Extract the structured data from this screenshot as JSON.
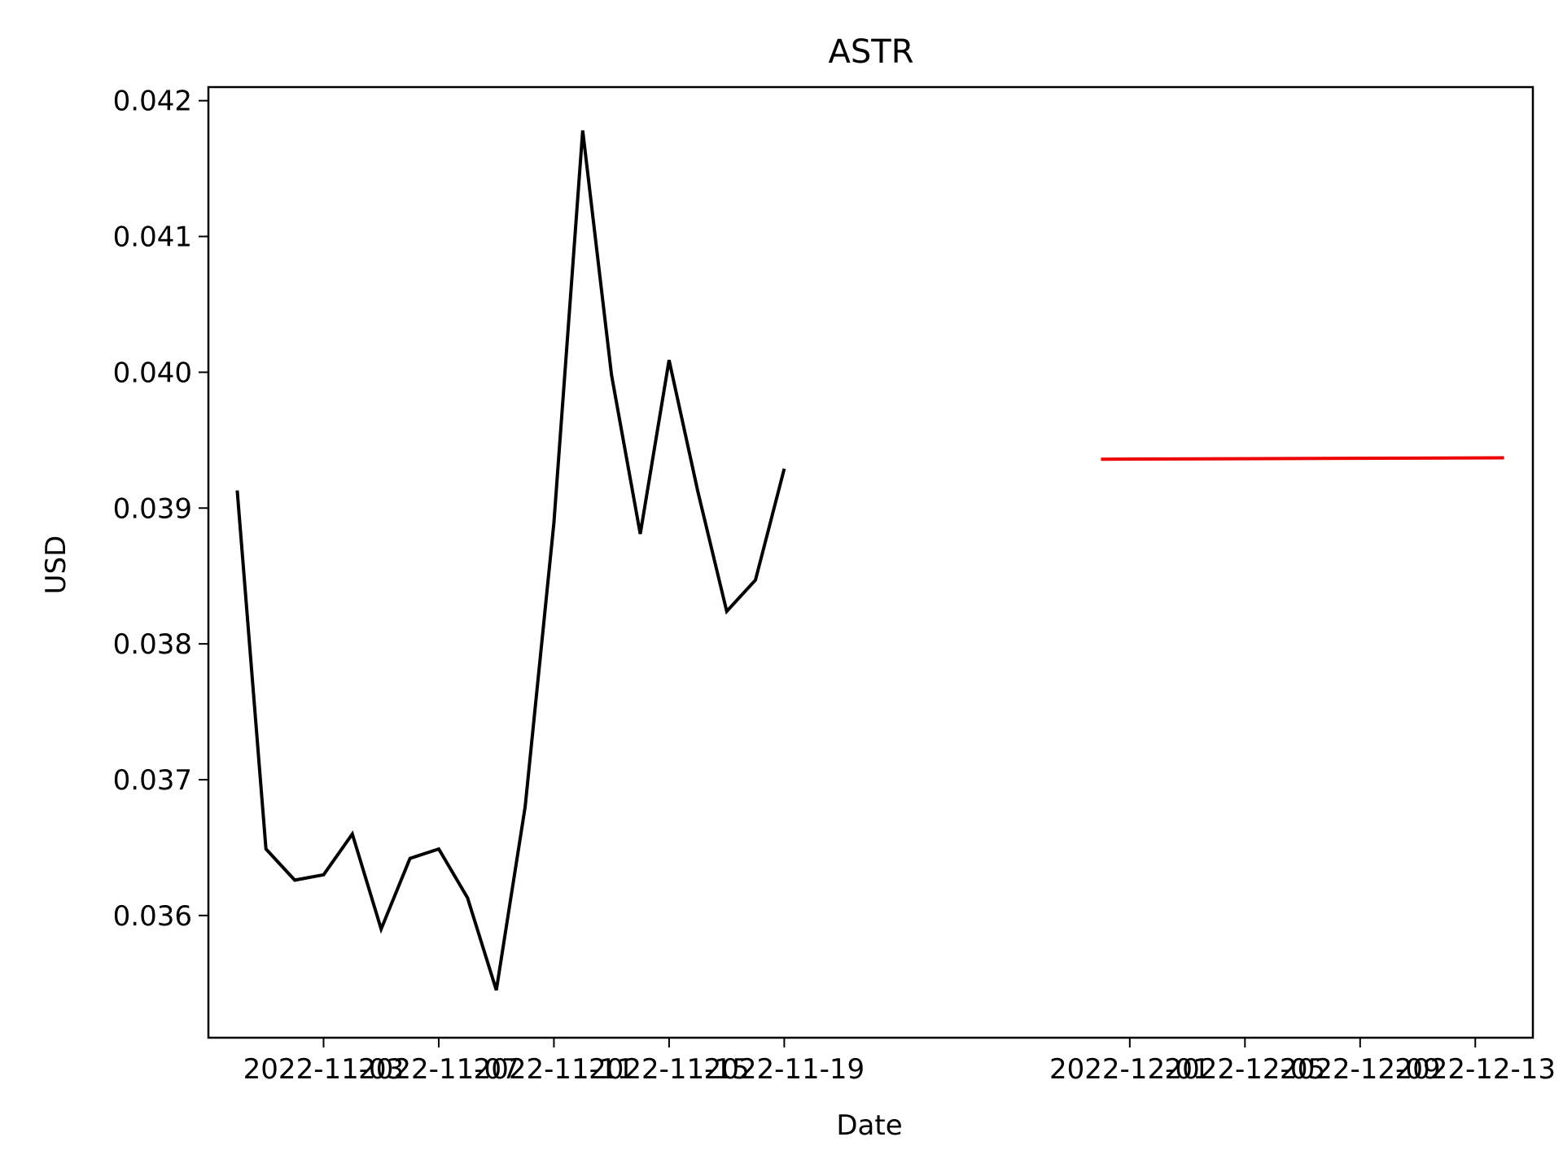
{
  "chart_data": {
    "type": "line",
    "title": "ASTR",
    "xlabel": "Date",
    "ylabel": "USD",
    "xlim": [
      "2022-10-30",
      "2022-12-15"
    ],
    "ylim": [
      0.0351,
      0.0421
    ],
    "grid": false,
    "x_ticks": [
      "2022-11-03",
      "2022-11-07",
      "2022-11-11",
      "2022-11-15",
      "2022-11-19",
      "2022-12-01",
      "2022-12-05",
      "2022-12-09",
      "2022-12-13"
    ],
    "y_ticks": [
      "0.036",
      "0.037",
      "0.038",
      "0.039",
      "0.040",
      "0.041",
      "0.042"
    ],
    "series": [
      {
        "color": "#000000",
        "x": [
          "2022-10-31",
          "2022-11-01",
          "2022-11-02",
          "2022-11-03",
          "2022-11-04",
          "2022-11-05",
          "2022-11-06",
          "2022-11-07",
          "2022-11-08",
          "2022-11-09",
          "2022-11-10",
          "2022-11-11",
          "2022-11-12",
          "2022-11-13",
          "2022-11-14",
          "2022-11-15",
          "2022-11-16",
          "2022-11-17",
          "2022-11-18",
          "2022-11-19",
          "2022-11-20"
        ],
        "values": [
          0.03913,
          0.03649,
          0.03626,
          0.0363,
          0.0366,
          0.0359,
          0.03642,
          0.03649,
          0.03613,
          0.03545,
          0.0368,
          0.03889,
          0.04178,
          0.03998,
          0.03881,
          0.04009,
          0.03912,
          0.03824,
          0.03847,
          0.03929,
          null
        ]
      },
      {
        "color": "#ee0000",
        "x": [
          "2022-11-30",
          "2022-12-14"
        ],
        "values": [
          0.03936,
          0.03937
        ]
      }
    ]
  }
}
